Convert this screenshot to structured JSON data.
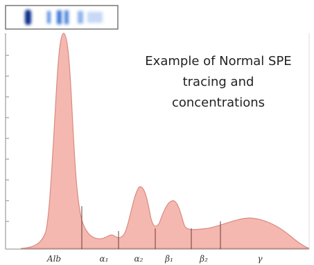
{
  "annotation": {
    "lines": [
      "Example of Normal SPE",
      "tracing and",
      "concentrations"
    ]
  },
  "fractions": [
    "Alb",
    "α₁",
    "α₂",
    "β₁",
    "β₂",
    "γ"
  ]
}
